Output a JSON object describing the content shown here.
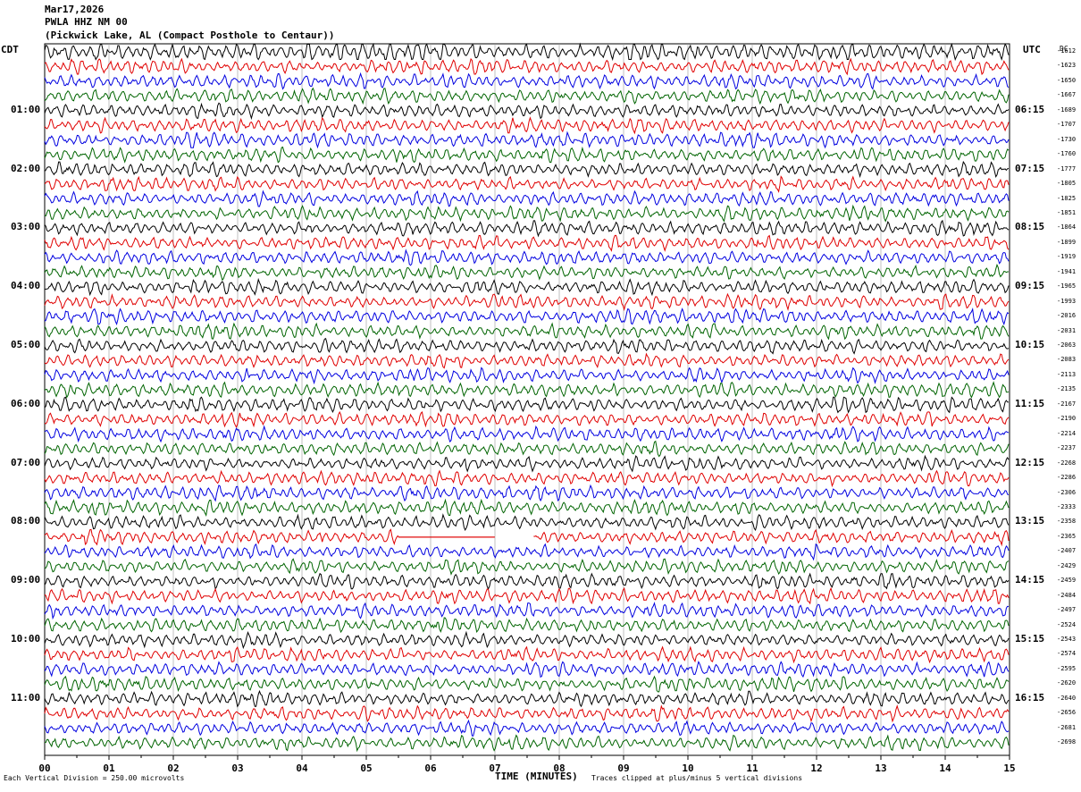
{
  "header": {
    "date": "Mar17,2026",
    "station": "PWLA HHZ NM 00",
    "location": "(Pickwick Lake, AL (Compact Posthole to Centaur))"
  },
  "axes": {
    "left_tz": "CDT",
    "right_tz": "UTC",
    "dc_header": "DC",
    "xlabel": "TIME (MINUTES)",
    "xticks": [
      "00",
      "01",
      "02",
      "03",
      "04",
      "05",
      "06",
      "07",
      "08",
      "09",
      "10",
      "11",
      "12",
      "13",
      "14",
      "15"
    ]
  },
  "footer": {
    "scale_note": "Each Vertical Division =  250.00 microvolts",
    "clip_note": "Traces clipped at plus/minus 5 vertical divisions"
  },
  "chart_data": {
    "type": "line",
    "title": "",
    "xlabel": "TIME (MINUTES)",
    "xlim": [
      0,
      15
    ],
    "trace_colors": [
      "#000000",
      "#e00000",
      "#0000e0",
      "#006400"
    ],
    "left_time_labels": [
      "01:00",
      "02:00",
      "03:00",
      "04:00",
      "05:00",
      "06:00",
      "07:00",
      "08:00",
      "09:00",
      "10:00",
      "11:00"
    ],
    "right_time_labels": [
      "06:15",
      "07:15",
      "08:15",
      "09:15",
      "10:15",
      "11:15",
      "12:15",
      "13:15",
      "14:15",
      "15:15",
      "16:15"
    ],
    "dc_offsets": [
      "-1612",
      "-1623",
      "-1650",
      "-1667",
      "-1689",
      "-1707",
      "-1730",
      "-1760",
      "-1777",
      "-1805",
      "-1825",
      "-1851",
      "-1864",
      "-1899",
      "-1919",
      "-1941",
      "-1965",
      "-1993",
      "-2016",
      "-2031",
      "-2063",
      "-2083",
      "-2113",
      "-2135",
      "-2167",
      "-2190",
      "-2214",
      "-2237",
      "-2268",
      "-2286",
      "-2306",
      "-2333",
      "-2358",
      "-2365",
      "-2407",
      "-2429",
      "-2459",
      "-2484",
      "-2497",
      "-2524",
      "-2543",
      "-2574",
      "-2595",
      "-2620",
      "-2640",
      "-2656",
      "-2681",
      "-2698"
    ],
    "traces_per_hour": 4,
    "trace_count": 48,
    "gaps": [
      {
        "trace_index": 33,
        "from_min": 5.5,
        "to_min": 7.0,
        "type": "flat"
      },
      {
        "trace_index": 33,
        "from_min": 7.0,
        "to_min": 7.6,
        "type": "missing"
      }
    ]
  }
}
